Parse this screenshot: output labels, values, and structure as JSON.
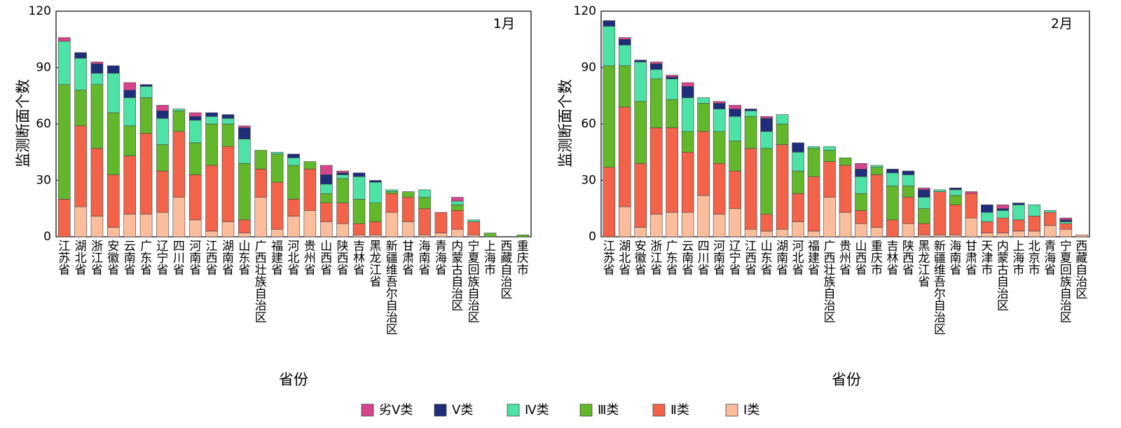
{
  "legend": [
    {
      "label": "劣Ⅴ类",
      "color": "#d6458c"
    },
    {
      "label": "Ⅴ类",
      "color": "#1f2e7a"
    },
    {
      "label": "Ⅳ类",
      "color": "#4ee3a6"
    },
    {
      "label": "Ⅲ类",
      "color": "#62b82a"
    },
    {
      "label": "Ⅱ类",
      "color": "#f2634a"
    },
    {
      "label": "Ⅰ类",
      "color": "#fbbd9c"
    }
  ],
  "chart_data": [
    {
      "type": "bar",
      "stacked": true,
      "title": "1月",
      "xlabel": "省份",
      "ylabel": "监测断面个数",
      "ylim": [
        0,
        120
      ],
      "yticks": [
        0,
        30,
        60,
        90,
        120
      ],
      "categories": [
        "江苏省",
        "湖北省",
        "浙江省",
        "安徽省",
        "云南省",
        "广东省",
        "辽宁省",
        "四川省",
        "河南省",
        "江西省",
        "湖南省",
        "山东省",
        "广西壮族自治区",
        "福建省",
        "河北省",
        "贵州省",
        "山西省",
        "陕西省",
        "吉林省",
        "黑龙江省",
        "新疆维吾尔自治区",
        "甘肃省",
        "海南省",
        "青海省",
        "内蒙古自治区",
        "宁夏回族自治区",
        "上海市",
        "西藏自治区",
        "重庆市"
      ],
      "series": [
        {
          "name": "Ⅰ类",
          "values": [
            0,
            16,
            11,
            5,
            12,
            12,
            13,
            21,
            9,
            3,
            8,
            2,
            21,
            4,
            11,
            14,
            8,
            7,
            1,
            1,
            13,
            8,
            1,
            2,
            4,
            1,
            0,
            0,
            0
          ]
        },
        {
          "name": "Ⅱ类",
          "values": [
            20,
            43,
            36,
            28,
            31,
            43,
            22,
            35,
            24,
            35,
            40,
            7,
            15,
            25,
            9,
            22,
            10,
            11,
            6,
            7,
            10,
            13,
            14,
            11,
            10,
            7,
            0,
            0,
            0
          ]
        },
        {
          "name": "Ⅲ类",
          "values": [
            61,
            19,
            34,
            33,
            16,
            19,
            14,
            11,
            17,
            22,
            12,
            30,
            10,
            15,
            18,
            4,
            5,
            13,
            13,
            10,
            1,
            3,
            6,
            0,
            3,
            0,
            2,
            0,
            1
          ]
        },
        {
          "name": "Ⅳ类",
          "values": [
            23,
            17,
            6,
            21,
            15,
            6,
            14,
            1,
            12,
            4,
            3,
            13,
            0,
            1,
            4,
            0,
            5,
            2,
            12,
            11,
            1,
            0,
            4,
            0,
            2,
            1,
            0,
            0,
            0
          ]
        },
        {
          "name": "Ⅴ类",
          "values": [
            0,
            3,
            5,
            4,
            4,
            1,
            4,
            0,
            2,
            2,
            2,
            6,
            0,
            0,
            2,
            0,
            5,
            1,
            2,
            1,
            0,
            0,
            0,
            0,
            0,
            0,
            0,
            0,
            0
          ]
        },
        {
          "name": "劣Ⅴ类",
          "values": [
            2,
            0,
            1,
            0,
            4,
            0,
            3,
            0,
            2,
            0,
            0,
            1,
            0,
            0,
            0,
            0,
            5,
            1,
            0,
            0,
            0,
            0,
            0,
            0,
            2,
            0,
            0,
            0,
            0
          ]
        }
      ]
    },
    {
      "type": "bar",
      "stacked": true,
      "title": "2月",
      "xlabel": "省份",
      "ylabel": "监测断面个数",
      "ylim": [
        0,
        120
      ],
      "yticks": [
        0,
        30,
        60,
        90,
        120
      ],
      "categories": [
        "江苏省",
        "湖北省",
        "安徽省",
        "浙江省",
        "广东省",
        "云南省",
        "四川省",
        "河南省",
        "辽宁省",
        "江西省",
        "山东省",
        "湖南省",
        "河北省",
        "福建省",
        "广西壮族自治区",
        "贵州省",
        "山西省",
        "重庆市",
        "吉林省",
        "陕西省",
        "黑龙江省",
        "新疆维吾尔自治区",
        "海南省",
        "甘肃省",
        "天津市",
        "内蒙古自治区",
        "上海市",
        "北京市",
        "青海省",
        "宁夏回族自治区",
        "西藏自治区"
      ],
      "series": [
        {
          "name": "Ⅰ类",
          "values": [
            0,
            16,
            5,
            12,
            13,
            13,
            22,
            12,
            15,
            4,
            3,
            4,
            8,
            3,
            21,
            13,
            7,
            5,
            0,
            7,
            1,
            1,
            1,
            10,
            2,
            2,
            3,
            3,
            6,
            4,
            1
          ]
        },
        {
          "name": "Ⅱ类",
          "values": [
            37,
            53,
            34,
            46,
            45,
            32,
            34,
            27,
            20,
            43,
            9,
            45,
            15,
            29,
            19,
            25,
            7,
            28,
            9,
            14,
            6,
            23,
            16,
            13,
            6,
            8,
            6,
            8,
            7,
            3,
            0
          ]
        },
        {
          "name": "Ⅲ类",
          "values": [
            54,
            22,
            33,
            26,
            15,
            11,
            15,
            17,
            16,
            17,
            35,
            11,
            12,
            15,
            6,
            4,
            9,
            4,
            18,
            6,
            8,
            0,
            5,
            0,
            0,
            0,
            0,
            0,
            0,
            0,
            0
          ]
        },
        {
          "name": "Ⅳ类",
          "values": [
            21,
            11,
            21,
            5,
            11,
            18,
            3,
            12,
            13,
            3,
            9,
            5,
            10,
            1,
            2,
            0,
            9,
            1,
            7,
            6,
            6,
            1,
            3,
            0,
            5,
            4,
            8,
            6,
            1,
            1,
            0
          ]
        },
        {
          "name": "Ⅴ类",
          "values": [
            3,
            3,
            1,
            3,
            1,
            6,
            0,
            3,
            4,
            1,
            7,
            0,
            5,
            0,
            0,
            0,
            4,
            0,
            2,
            2,
            4,
            0,
            1,
            0,
            4,
            1,
            1,
            0,
            0,
            1,
            0
          ]
        },
        {
          "name": "劣Ⅴ类",
          "values": [
            0,
            1,
            0,
            1,
            1,
            2,
            0,
            1,
            2,
            0,
            1,
            0,
            0,
            0,
            0,
            0,
            3,
            0,
            0,
            0,
            1,
            0,
            0,
            1,
            0,
            2,
            0,
            0,
            0,
            1,
            0
          ]
        }
      ]
    }
  ]
}
